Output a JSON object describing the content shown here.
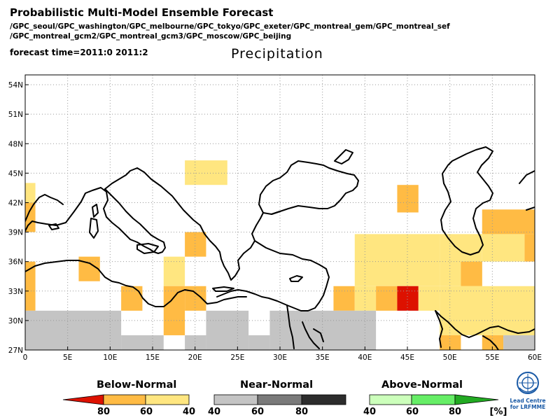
{
  "header": {
    "title": "Probabilistic Multi-Model Ensemble Forecast",
    "models_line1": "/GPC_seoul/GPC_washington/GPC_melbourne/GPC_tokyo/GPC_exeter/GPC_montreal_gem/GPC_montreal_sef",
    "models_line2": "/GPC_montreal_gcm2/GPC_montreal_gcm3/GPC_moscow/GPC_beijing",
    "forecast_time": "forecast time=2011:0 2011:2",
    "variable": "Precipitation"
  },
  "map": {
    "lon_range": [
      0,
      60
    ],
    "lat_range": [
      27,
      55
    ],
    "x_ticks": [
      "0",
      "5E",
      "10E",
      "15E",
      "20E",
      "25E",
      "30E",
      "35E",
      "40E",
      "45E",
      "50E",
      "55E",
      "60E"
    ],
    "y_ticks": [
      "27N",
      "30N",
      "33N",
      "36N",
      "39N",
      "42N",
      "45N",
      "48N",
      "51N",
      "54N"
    ],
    "cells": [
      {
        "lon0": 0,
        "lat0": 42,
        "lon1": 1.2,
        "lat1": 44,
        "cat": "below_40"
      },
      {
        "lon0": 0,
        "lat0": 39,
        "lon1": 1.2,
        "lat1": 42,
        "cat": "below_60"
      },
      {
        "lon0": 0,
        "lat0": 31,
        "lon1": 1.2,
        "lat1": 36,
        "cat": "below_60"
      },
      {
        "lon0": 6.3,
        "lat0": 34,
        "lon1": 8.8,
        "lat1": 36.5,
        "cat": "below_60"
      },
      {
        "lon0": 11.3,
        "lat0": 31,
        "lon1": 13.8,
        "lat1": 33.5,
        "cat": "below_60"
      },
      {
        "lon0": 16.3,
        "lat0": 33.5,
        "lon1": 18.8,
        "lat1": 36.5,
        "cat": "below_40"
      },
      {
        "lon0": 16.3,
        "lat0": 28.5,
        "lon1": 18.8,
        "lat1": 33.5,
        "cat": "below_60"
      },
      {
        "lon0": 18.8,
        "lat0": 31,
        "lon1": 21.3,
        "lat1": 33.5,
        "cat": "below_60"
      },
      {
        "lon0": 18.8,
        "lat0": 36.5,
        "lon1": 21.3,
        "lat1": 39,
        "cat": "below_60"
      },
      {
        "lon0": 18.8,
        "lat0": 43.8,
        "lon1": 23.8,
        "lat1": 46.3,
        "cat": "below_40"
      },
      {
        "lon0": 43.8,
        "lat0": 41,
        "lon1": 46.3,
        "lat1": 43.8,
        "cat": "below_60"
      },
      {
        "lon0": 38.8,
        "lat0": 33.5,
        "lon1": 48.8,
        "lat1": 38.8,
        "cat": "below_40"
      },
      {
        "lon0": 48.8,
        "lat0": 33.5,
        "lon1": 53.8,
        "lat1": 38.8,
        "cat": "below_40"
      },
      {
        "lon0": 51.3,
        "lat0": 33.5,
        "lon1": 53.8,
        "lat1": 36,
        "cat": "below_60"
      },
      {
        "lon0": 53.8,
        "lat0": 36,
        "lon1": 58.8,
        "lat1": 38.8,
        "cat": "below_40"
      },
      {
        "lon0": 53.8,
        "lat0": 38.8,
        "lon1": 60,
        "lat1": 41.3,
        "cat": "below_60"
      },
      {
        "lon0": 58.8,
        "lat0": 36,
        "lon1": 60,
        "lat1": 38.8,
        "cat": "below_60"
      },
      {
        "lon0": 48.8,
        "lat0": 28.5,
        "lon1": 60,
        "lat1": 33.5,
        "cat": "below_40"
      },
      {
        "lon0": 36.3,
        "lat0": 31,
        "lon1": 38.8,
        "lat1": 33.5,
        "cat": "below_60"
      },
      {
        "lon0": 38.8,
        "lat0": 31,
        "lon1": 41.3,
        "lat1": 33.5,
        "cat": "below_40"
      },
      {
        "lon0": 41.3,
        "lat0": 31,
        "lon1": 43.8,
        "lat1": 33.5,
        "cat": "below_60"
      },
      {
        "lon0": 43.8,
        "lat0": 31,
        "lon1": 46.3,
        "lat1": 33.5,
        "cat": "below_80"
      },
      {
        "lon0": 46.3,
        "lat0": 31,
        "lon1": 48.8,
        "lat1": 33.5,
        "cat": "below_40"
      },
      {
        "lon0": 48.8,
        "lat0": 27,
        "lon1": 51.3,
        "lat1": 28.5,
        "cat": "below_60"
      },
      {
        "lon0": 53.8,
        "lat0": 27,
        "lon1": 56.3,
        "lat1": 28.5,
        "cat": "below_60"
      },
      {
        "lon0": 56.3,
        "lat0": 27,
        "lon1": 60,
        "lat1": 28.5,
        "cat": "near"
      },
      {
        "lon0": 0,
        "lat0": 27,
        "lon1": 11.3,
        "lat1": 31,
        "cat": "near"
      },
      {
        "lon0": 11.3,
        "lat0": 27,
        "lon1": 16.3,
        "lat1": 28.5,
        "cat": "near"
      },
      {
        "lon0": 18.8,
        "lat0": 27,
        "lon1": 21.3,
        "lat1": 28.5,
        "cat": "near"
      },
      {
        "lon0": 21.3,
        "lat0": 27,
        "lon1": 26.3,
        "lat1": 31,
        "cat": "near"
      },
      {
        "lon0": 26.3,
        "lat0": 27,
        "lon1": 28.8,
        "lat1": 28.5,
        "cat": "near"
      },
      {
        "lon0": 28.8,
        "lat0": 27,
        "lon1": 41.3,
        "lat1": 31,
        "cat": "near"
      }
    ]
  },
  "colors": {
    "below_40": "#ffe680",
    "below_60": "#ffbb44",
    "below_80": "#dd1100",
    "near": "#c4c4c4",
    "near_60": "#7a7a7a",
    "near_80": "#2c2c2c",
    "above_40": "#ccffbb",
    "above_60": "#66ee66",
    "above_80": "#22aa22",
    "coast": "#000000",
    "grid": "#999999"
  },
  "legend": {
    "below": {
      "title": "Below-Normal",
      "labels": [
        "80",
        "60",
        "40"
      ]
    },
    "near": {
      "title": "Near-Normal",
      "labels": [
        "40",
        "60",
        "80"
      ]
    },
    "above": {
      "title": "Above-Normal",
      "labels": [
        "40",
        "60",
        "80"
      ]
    },
    "unit": "[%]"
  },
  "logo": {
    "line1": "Lead Centre",
    "line2": "for LRFMME"
  }
}
